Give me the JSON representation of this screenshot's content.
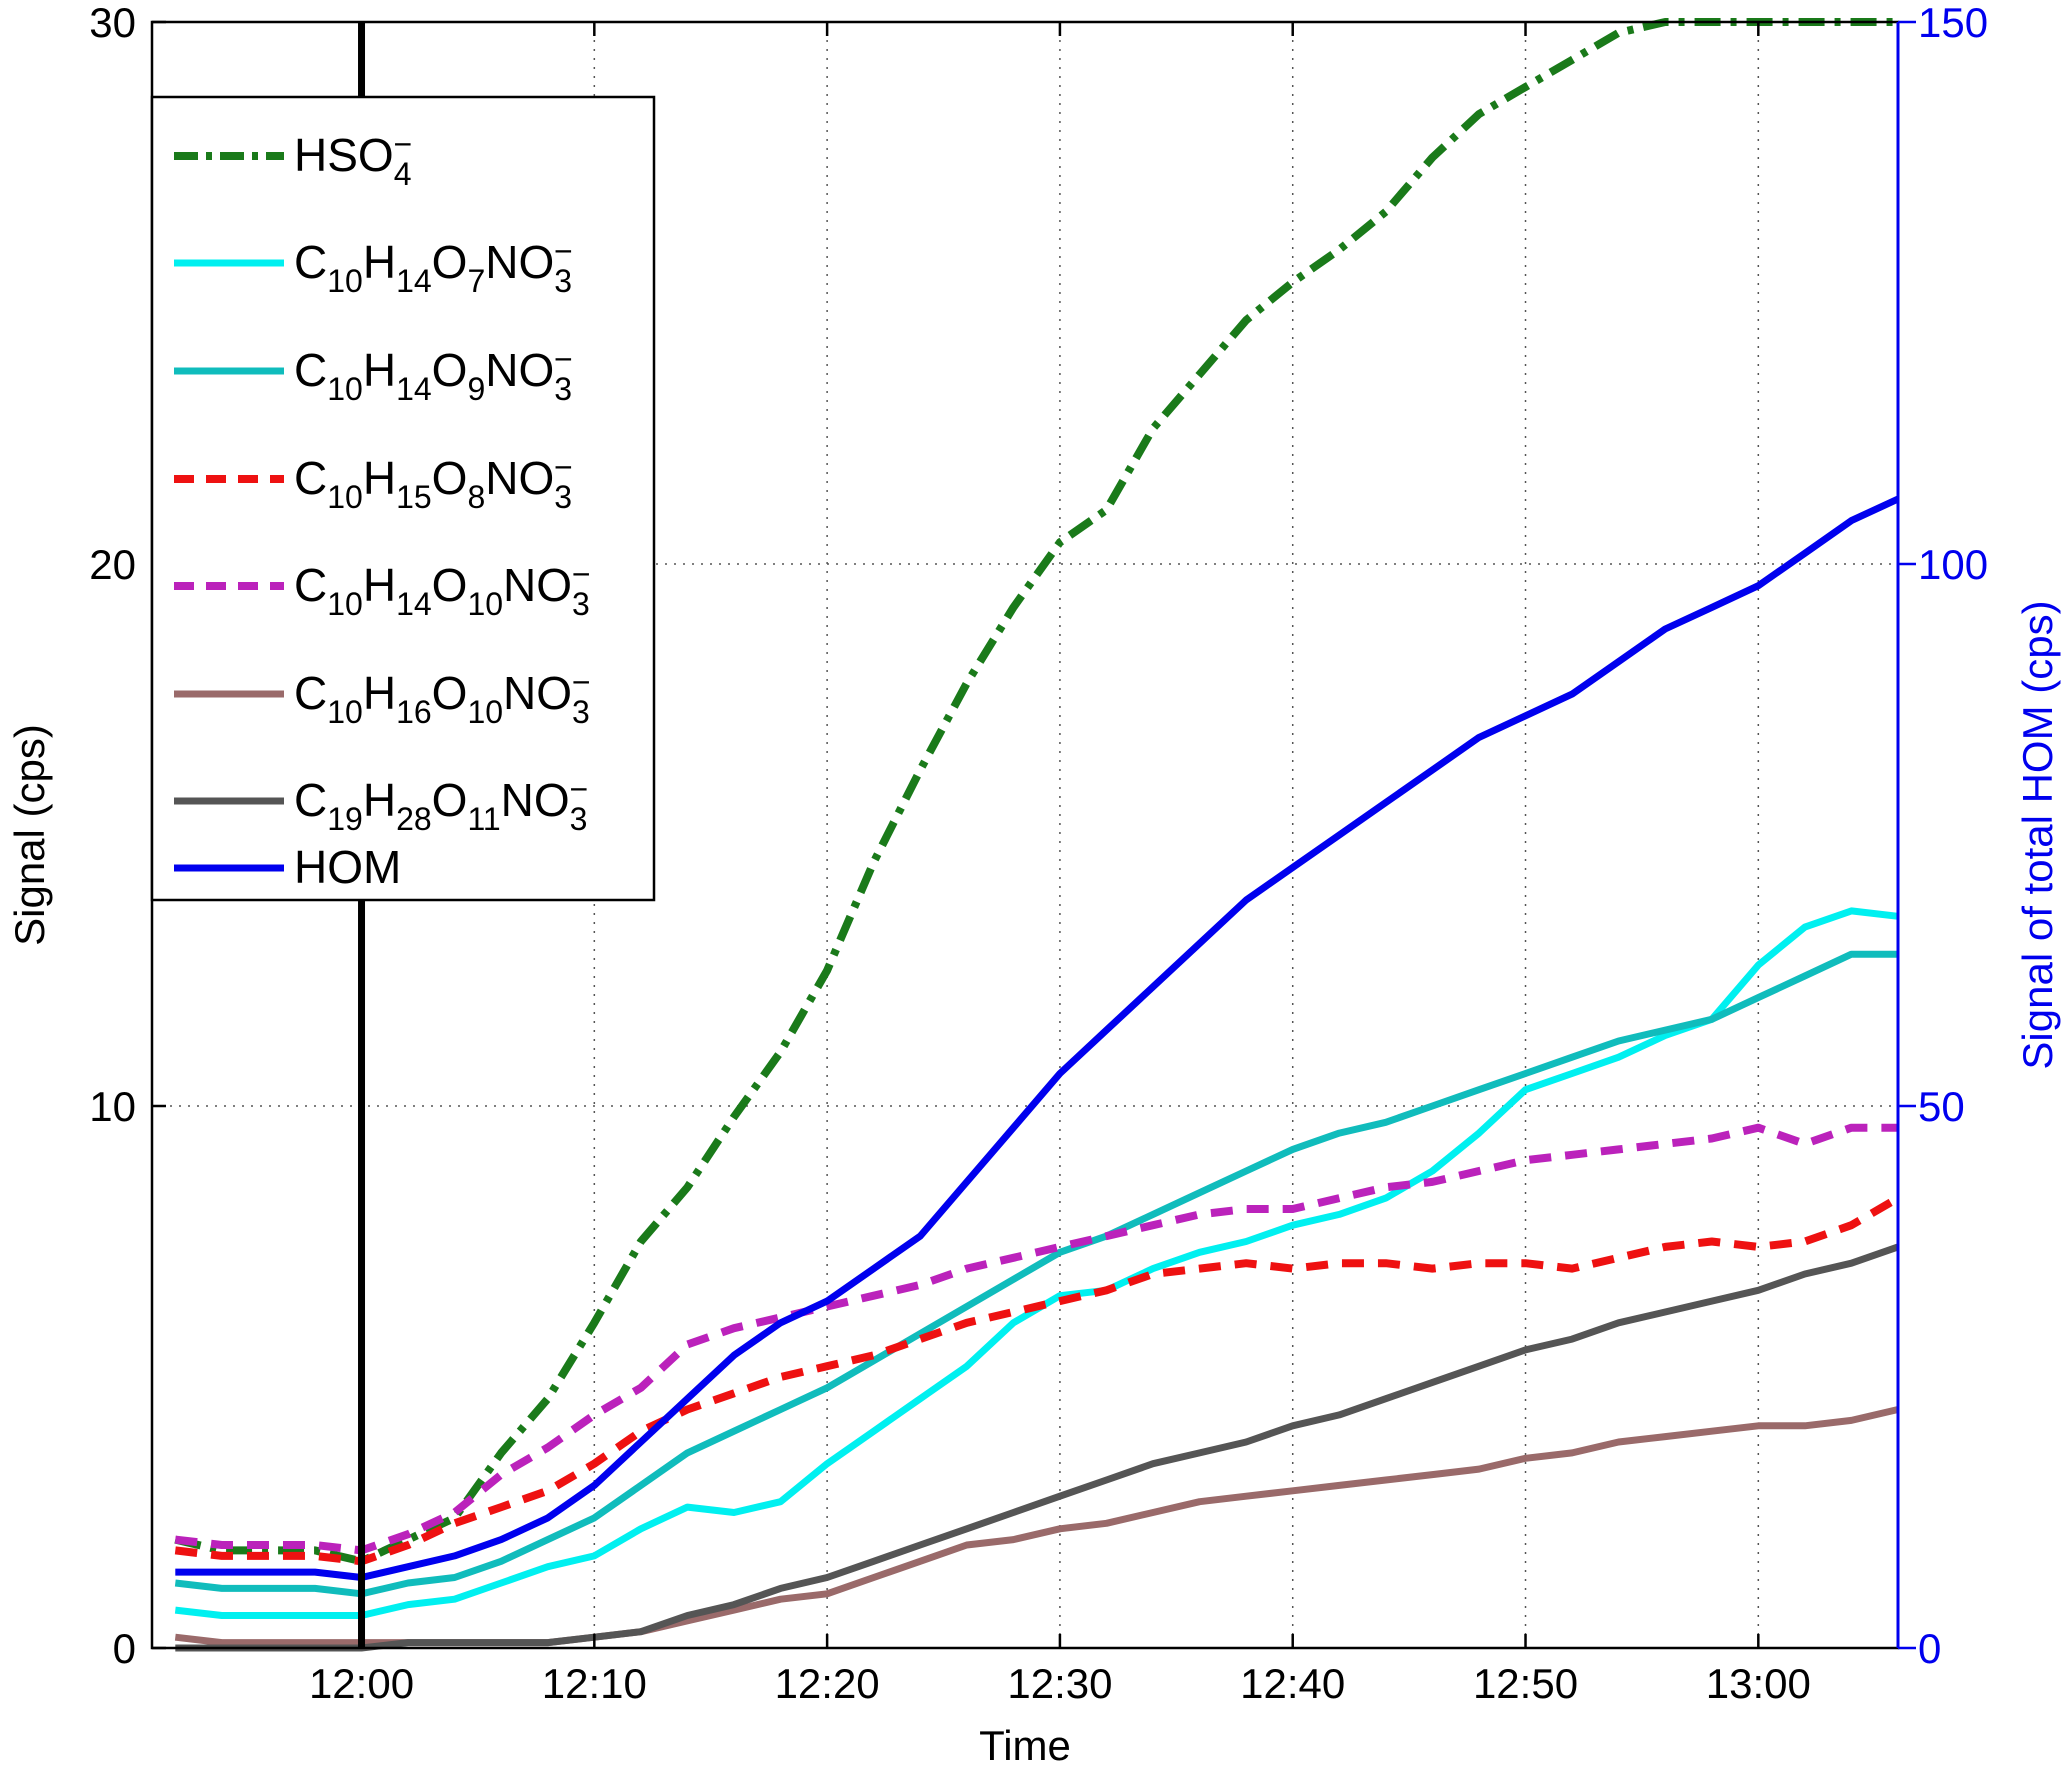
{
  "chart_data": {
    "type": "line",
    "xlabel": "Time",
    "ylabel": "Signal (cps)",
    "ylabel_right": "Signal of total HOM (cps)",
    "xlim": [
      "11:51",
      "13:06"
    ],
    "ylim": [
      0,
      30
    ],
    "ylim_right": [
      0,
      150
    ],
    "x_ticks": [
      "12:00",
      "12:10",
      "12:20",
      "12:30",
      "12:40",
      "12:50",
      "13:00"
    ],
    "y_ticks": [
      "0",
      "10",
      "20",
      "30"
    ],
    "y_ticks_right": [
      "0",
      "50",
      "100",
      "150"
    ],
    "grid": true,
    "legend_position": "top-left",
    "event_marker_time": "12:00",
    "colors": {
      "axes": "#000000",
      "right_axis": "#0000ee",
      "grid": "#555555"
    },
    "x": [
      "11:52",
      "11:54",
      "11:56",
      "11:58",
      "12:00",
      "12:02",
      "12:04",
      "12:06",
      "12:08",
      "12:10",
      "12:12",
      "12:14",
      "12:16",
      "12:18",
      "12:20",
      "12:22",
      "12:24",
      "12:26",
      "12:28",
      "12:30",
      "12:32",
      "12:34",
      "12:36",
      "12:38",
      "12:40",
      "12:42",
      "12:44",
      "12:46",
      "12:48",
      "12:50",
      "12:52",
      "12:54",
      "12:56",
      "12:58",
      "13:00",
      "13:02",
      "13:04",
      "13:06"
    ],
    "series": [
      {
        "name": "HSO4-",
        "label_parts": [
          {
            "t": "HSO"
          },
          {
            "t": "4",
            "sub": true
          },
          {
            "t": "−",
            "sup": true
          }
        ],
        "axis": "left",
        "color": "#1a7a1a",
        "style": "dashdot",
        "width": 8,
        "values": [
          2.0,
          1.8,
          1.8,
          1.8,
          1.6,
          2.0,
          2.4,
          3.6,
          4.6,
          6.0,
          7.5,
          8.5,
          9.8,
          11.0,
          12.5,
          14.5,
          16.2,
          17.8,
          19.2,
          20.4,
          21.0,
          22.5,
          23.5,
          24.5,
          25.2,
          25.8,
          26.5,
          27.5,
          28.3,
          28.8,
          29.3,
          29.8,
          30.0,
          30.0,
          30.0,
          30.0,
          30.0,
          30.0
        ]
      },
      {
        "name": "C10H14O7NO3-",
        "label_parts": [
          {
            "t": "C"
          },
          {
            "t": "10",
            "sub": true
          },
          {
            "t": "H"
          },
          {
            "t": "14",
            "sub": true
          },
          {
            "t": "O"
          },
          {
            "t": "7",
            "sub": true
          },
          {
            "t": "NO"
          },
          {
            "t": "3",
            "sub": true
          },
          {
            "t": "−",
            "sup": true
          }
        ],
        "axis": "left",
        "color": "#00f0f0",
        "style": "solid",
        "width": 7,
        "values": [
          0.7,
          0.6,
          0.6,
          0.6,
          0.6,
          0.8,
          0.9,
          1.2,
          1.5,
          1.7,
          2.2,
          2.6,
          2.5,
          2.7,
          3.4,
          4.0,
          4.6,
          5.2,
          6.0,
          6.5,
          6.6,
          7.0,
          7.3,
          7.5,
          7.8,
          8.0,
          8.3,
          8.8,
          9.5,
          10.3,
          10.6,
          10.9,
          11.3,
          11.6,
          12.6,
          13.3,
          13.6,
          13.5
        ]
      },
      {
        "name": "C10H14O9NO3-",
        "label_parts": [
          {
            "t": "C"
          },
          {
            "t": "10",
            "sub": true
          },
          {
            "t": "H"
          },
          {
            "t": "14",
            "sub": true
          },
          {
            "t": "O"
          },
          {
            "t": "9",
            "sub": true
          },
          {
            "t": "NO"
          },
          {
            "t": "3",
            "sub": true
          },
          {
            "t": "−",
            "sup": true
          }
        ],
        "axis": "left",
        "color": "#10bcbc",
        "style": "solid",
        "width": 7,
        "values": [
          1.2,
          1.1,
          1.1,
          1.1,
          1.0,
          1.2,
          1.3,
          1.6,
          2.0,
          2.4,
          3.0,
          3.6,
          4.0,
          4.4,
          4.8,
          5.3,
          5.8,
          6.3,
          6.8,
          7.3,
          7.6,
          8.0,
          8.4,
          8.8,
          9.2,
          9.5,
          9.7,
          10.0,
          10.3,
          10.6,
          10.9,
          11.2,
          11.4,
          11.6,
          12.0,
          12.4,
          12.8,
          12.8
        ]
      },
      {
        "name": "C10H15O8NO3-",
        "label_parts": [
          {
            "t": "C"
          },
          {
            "t": "10",
            "sub": true
          },
          {
            "t": "H"
          },
          {
            "t": "15",
            "sub": true
          },
          {
            "t": "O"
          },
          {
            "t": "8",
            "sub": true
          },
          {
            "t": "NO"
          },
          {
            "t": "3",
            "sub": true
          },
          {
            "t": "−",
            "sup": true
          }
        ],
        "axis": "left",
        "color": "#ee1111",
        "style": "dashed",
        "width": 8,
        "values": [
          1.8,
          1.7,
          1.7,
          1.7,
          1.6,
          1.9,
          2.3,
          2.6,
          2.9,
          3.4,
          4.0,
          4.4,
          4.7,
          5.0,
          5.2,
          5.4,
          5.7,
          6.0,
          6.2,
          6.4,
          6.6,
          6.9,
          7.0,
          7.1,
          7.0,
          7.1,
          7.1,
          7.0,
          7.1,
          7.1,
          7.0,
          7.2,
          7.4,
          7.5,
          7.4,
          7.5,
          7.8,
          8.3
        ]
      },
      {
        "name": "C10H14O10NO3-",
        "label_parts": [
          {
            "t": "C"
          },
          {
            "t": "10",
            "sub": true
          },
          {
            "t": "H"
          },
          {
            "t": "14",
            "sub": true
          },
          {
            "t": "O"
          },
          {
            "t": "10",
            "sub": true
          },
          {
            "t": "NO"
          },
          {
            "t": "3",
            "sub": true
          },
          {
            "t": "−",
            "sup": true
          }
        ],
        "axis": "left",
        "color": "#bb22bb",
        "style": "dashed",
        "width": 8,
        "values": [
          2.0,
          1.9,
          1.9,
          1.9,
          1.8,
          2.1,
          2.5,
          3.2,
          3.7,
          4.3,
          4.8,
          5.6,
          5.9,
          6.1,
          6.3,
          6.5,
          6.7,
          7.0,
          7.2,
          7.4,
          7.6,
          7.8,
          8.0,
          8.1,
          8.1,
          8.3,
          8.5,
          8.6,
          8.8,
          9.0,
          9.1,
          9.2,
          9.3,
          9.4,
          9.6,
          9.3,
          9.6,
          9.6
        ]
      },
      {
        "name": "C10H16O10NO3-",
        "label_parts": [
          {
            "t": "C"
          },
          {
            "t": "10",
            "sub": true
          },
          {
            "t": "H"
          },
          {
            "t": "16",
            "sub": true
          },
          {
            "t": "O"
          },
          {
            "t": "10",
            "sub": true
          },
          {
            "t": "NO"
          },
          {
            "t": "3",
            "sub": true
          },
          {
            "t": "−",
            "sup": true
          }
        ],
        "axis": "left",
        "color": "#9a6a6a",
        "style": "solid",
        "width": 7,
        "values": [
          0.2,
          0.1,
          0.1,
          0.1,
          0.1,
          0.1,
          0.1,
          0.1,
          0.1,
          0.2,
          0.3,
          0.5,
          0.7,
          0.9,
          1.0,
          1.3,
          1.6,
          1.9,
          2.0,
          2.2,
          2.3,
          2.5,
          2.7,
          2.8,
          2.9,
          3.0,
          3.1,
          3.2,
          3.3,
          3.5,
          3.6,
          3.8,
          3.9,
          4.0,
          4.1,
          4.1,
          4.2,
          4.4
        ]
      },
      {
        "name": "C19H28O11NO3-",
        "label_parts": [
          {
            "t": "C"
          },
          {
            "t": "19",
            "sub": true
          },
          {
            "t": "H"
          },
          {
            "t": "28",
            "sub": true
          },
          {
            "t": "O"
          },
          {
            "t": "11",
            "sub": true
          },
          {
            "t": "NO"
          },
          {
            "t": "3",
            "sub": true
          },
          {
            "t": "−",
            "sup": true
          }
        ],
        "axis": "left",
        "color": "#555555",
        "style": "solid",
        "width": 7,
        "values": [
          0.0,
          0.0,
          0.0,
          0.0,
          0.0,
          0.1,
          0.1,
          0.1,
          0.1,
          0.2,
          0.3,
          0.6,
          0.8,
          1.1,
          1.3,
          1.6,
          1.9,
          2.2,
          2.5,
          2.8,
          3.1,
          3.4,
          3.6,
          3.8,
          4.1,
          4.3,
          4.6,
          4.9,
          5.2,
          5.5,
          5.7,
          6.0,
          6.2,
          6.4,
          6.6,
          6.9,
          7.1,
          7.4
        ]
      },
      {
        "name": "HOM",
        "label_parts": [
          {
            "t": "HOM"
          }
        ],
        "axis": "right",
        "color": "#0000ee",
        "style": "solid",
        "width": 7,
        "values": [
          7,
          7,
          7,
          7,
          6.5,
          7.5,
          8.5,
          10,
          12,
          15,
          19,
          23,
          27,
          30,
          32,
          35,
          38,
          43,
          48,
          53,
          57,
          61,
          65,
          69,
          72,
          75,
          78,
          81,
          84,
          86,
          88,
          91,
          94,
          96,
          98,
          101,
          104,
          106
        ]
      }
    ]
  }
}
